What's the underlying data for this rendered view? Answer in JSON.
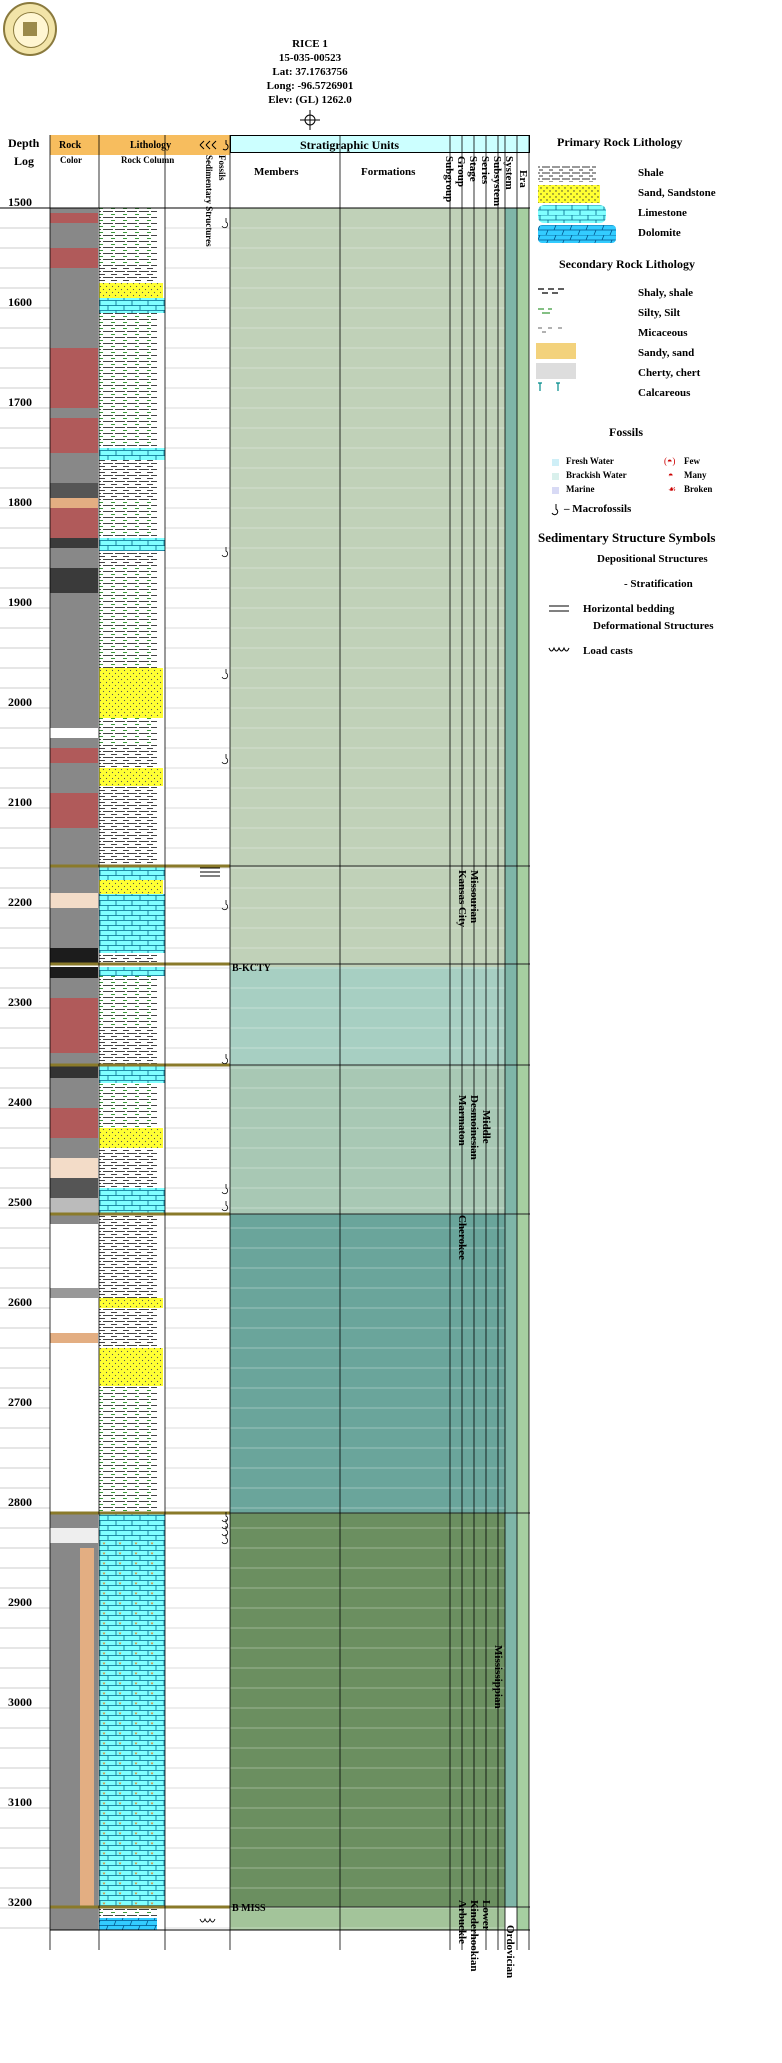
{
  "header": {
    "well_name": "RICE 1",
    "api": "15-035-00523",
    "lat": "Lat: 37.1763756",
    "long": "Long: -96.5726901",
    "elev": "Elev: (GL) 1262.0"
  },
  "columns": {
    "depth": "Depth",
    "log": "Log",
    "rock": "Rock",
    "color": "Color",
    "lithology": "Lithology",
    "rock_column": "Rock Column",
    "fossils": "Fossils",
    "sedimentary_structures": "Sedimentary Structures",
    "strat_units": "Stratigraphic Units",
    "members": "Members",
    "formations": "Formations",
    "subgroup": "Subgroup",
    "group": "Group",
    "stage": "Stage",
    "series": "Series",
    "subsystem": "Subsystem",
    "system": "System",
    "era": "Era"
  },
  "depths": [
    "1500",
    "1600",
    "1700",
    "1800",
    "1900",
    "2000",
    "2100",
    "2200",
    "2300",
    "2400",
    "2500",
    "2600",
    "2700",
    "2800",
    "2900",
    "3000",
    "3100",
    "3200"
  ],
  "depth_range": [
    1500,
    3222
  ],
  "markers": [
    {
      "label": "B-KCTY",
      "depth": 2259
    },
    {
      "label": "B MISS",
      "depth": 3199
    }
  ],
  "strat": {
    "kansas_city": "Kansas City",
    "missourian": "Missourian",
    "marmaton": "Marmaton",
    "desmoinesian": "Desmoinesian",
    "middle": "Middle",
    "cherokee": "Cherokee",
    "mississippian": "Mississippian",
    "arbuckle": "Arbuckle",
    "kindeehookian": "Kinderhookian",
    "lower": "Lower",
    "ordovician": "Ordovician"
  },
  "legend": {
    "primary_title": "Primary Rock Lithology",
    "primary": [
      "Shale",
      "Sand, Sandstone",
      "Limestone",
      "Dolomite"
    ],
    "secondary_title": "Secondary Rock Lithology",
    "secondary": [
      "Shaly, shale",
      "Silty, Silt",
      "Micaceous",
      "Sandy, sand",
      "Cherty, chert",
      "Calcareous"
    ],
    "fossils_title": "Fossils",
    "fresh_water": "Fresh Water",
    "brackish_water": "Brackish Water",
    "marine": "Marine",
    "few": "Few",
    "many": "Many",
    "broken": "Broken",
    "macrofossils": "– Macrofossils",
    "sed_title": "Sedimentary Structure Symbols",
    "depositional": "Depositional Structures",
    "stratification": "- Stratification",
    "horizontal_bedding": "Horizontal bedding",
    "deformational": "Deformational Structures",
    "load_casts": "Load casts"
  },
  "colors": {
    "header_orange": "#f7bd5e",
    "header_cyan": "#ccffff",
    "strat_upper": "#c0d1b8",
    "strat_kc": "#a7cfc2",
    "strat_marm": "#a8c8b4",
    "strat_cher": "#6aa59b",
    "strat_miss": "#6b8f60",
    "strat_arb": "#a3c49a",
    "limestone": "#80ffff",
    "sand": "#ffff33",
    "dolomite": "#33ccff",
    "red": "#b05a5a",
    "gray": "#888888",
    "tan": "#e3ae82"
  }
}
